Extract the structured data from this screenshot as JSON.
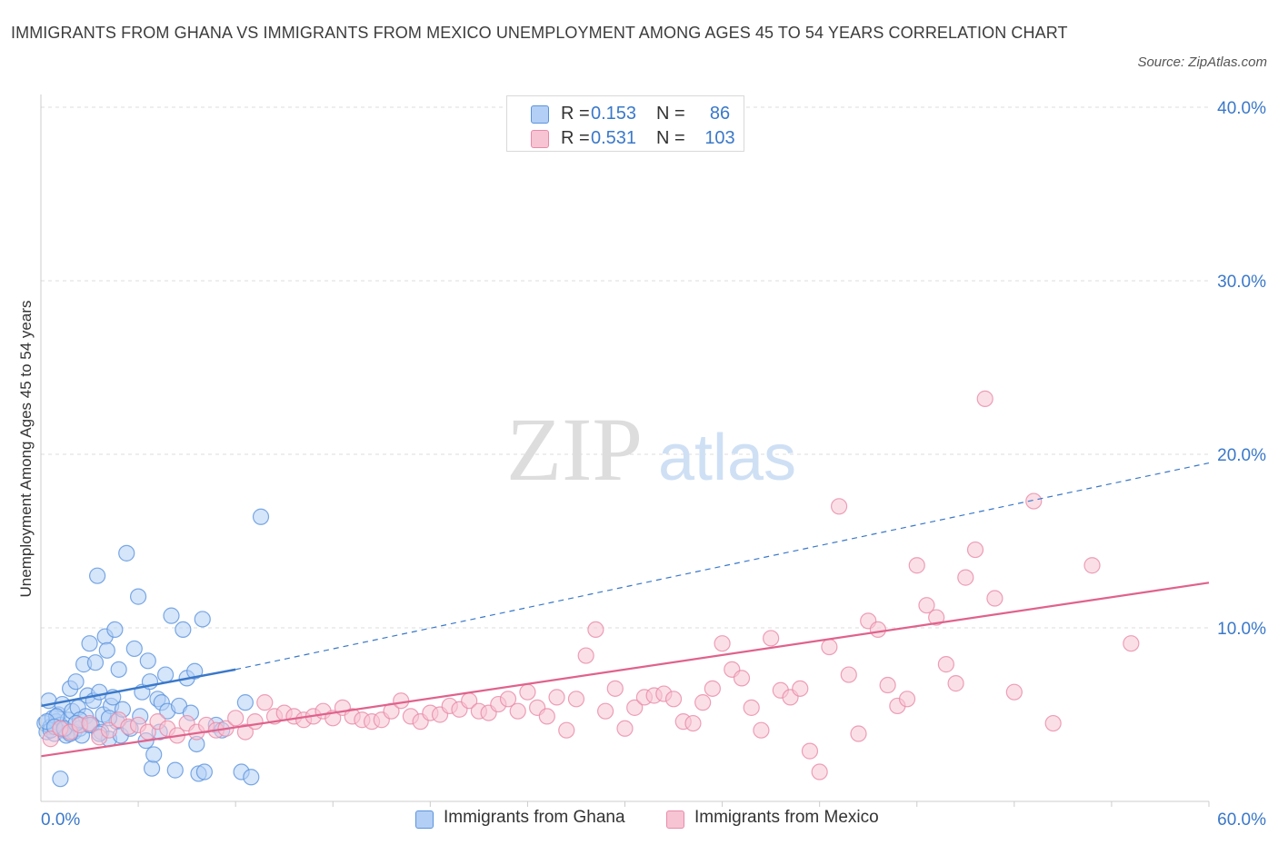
{
  "header": {
    "title": "IMMIGRANTS FROM GHANA VS IMMIGRANTS FROM MEXICO UNEMPLOYMENT AMONG AGES 45 TO 54 YEARS CORRELATION CHART",
    "source": "Source: ZipAtlas.com"
  },
  "watermark": {
    "zip": "ZIP",
    "atlas": "atlas"
  },
  "legend": {
    "r_label": "R =",
    "n_label": "N =",
    "ghana": {
      "r": "0.153",
      "n": "86"
    },
    "mexico": {
      "r": "0.531",
      "n": "103"
    }
  },
  "colors": {
    "ghana_fill": "#b3cff5",
    "ghana_stroke": "#5b93dd",
    "ghana_line": "#3a78c9",
    "mexico_fill": "#f7c4d4",
    "mexico_stroke": "#e88aa8",
    "mexico_line": "#e0628c",
    "axis_label": "#3a78c9"
  },
  "chart_data": {
    "type": "scatter",
    "title": "IMMIGRANTS FROM GHANA VS IMMIGRANTS FROM MEXICO UNEMPLOYMENT AMONG AGES 45 TO 54 YEARS CORRELATION CHART",
    "xlabel": "",
    "ylabel": "Unemployment Among Ages 45 to 54 years",
    "xlim": [
      0,
      60
    ],
    "ylim": [
      0,
      40
    ],
    "x_tick_labels": [
      "0.0%",
      "60.0%"
    ],
    "y_ticks": [
      10,
      20,
      30,
      40
    ],
    "y_tick_labels": [
      "10.0%",
      "20.0%",
      "30.0%",
      "40.0%"
    ],
    "grid": true,
    "legend_position": "top-center",
    "series": [
      {
        "name": "Immigrants from Ghana",
        "r": 0.153,
        "n": 86,
        "trend": {
          "x_start": 0,
          "y_start": 5.5,
          "x_end": 10,
          "y_end": 7.6,
          "extended_x_end": 60,
          "extended_y_end": 19.5
        },
        "points": [
          [
            0.2,
            4.5
          ],
          [
            0.3,
            4.0
          ],
          [
            0.4,
            5.8
          ],
          [
            0.5,
            4.3
          ],
          [
            0.6,
            4.8
          ],
          [
            0.7,
            3.9
          ],
          [
            0.8,
            4.6
          ],
          [
            0.9,
            5.0
          ],
          [
            1.0,
            4.4
          ],
          [
            1.1,
            5.6
          ],
          [
            1.2,
            4.1
          ],
          [
            1.3,
            3.8
          ],
          [
            1.4,
            4.7
          ],
          [
            1.5,
            6.5
          ],
          [
            1.6,
            5.2
          ],
          [
            1.7,
            4.0
          ],
          [
            1.8,
            6.9
          ],
          [
            1.9,
            5.4
          ],
          [
            2.0,
            4.2
          ],
          [
            2.1,
            3.8
          ],
          [
            2.2,
            7.9
          ],
          [
            2.3,
            4.9
          ],
          [
            2.4,
            6.1
          ],
          [
            2.5,
            9.1
          ],
          [
            2.6,
            4.4
          ],
          [
            2.7,
            5.8
          ],
          [
            2.8,
            8.0
          ],
          [
            2.9,
            13.0
          ],
          [
            3.0,
            6.3
          ],
          [
            3.1,
            4.0
          ],
          [
            3.2,
            5.0
          ],
          [
            3.3,
            9.5
          ],
          [
            3.4,
            8.7
          ],
          [
            3.5,
            3.6
          ],
          [
            3.6,
            5.5
          ],
          [
            3.7,
            6.0
          ],
          [
            3.8,
            9.9
          ],
          [
            3.9,
            4.6
          ],
          [
            4.0,
            7.6
          ],
          [
            4.1,
            3.8
          ],
          [
            4.2,
            5.3
          ],
          [
            4.4,
            14.3
          ],
          [
            4.6,
            4.2
          ],
          [
            4.8,
            8.8
          ],
          [
            5.0,
            11.8
          ],
          [
            5.1,
            4.9
          ],
          [
            5.2,
            6.3
          ],
          [
            5.4,
            3.5
          ],
          [
            5.5,
            8.1
          ],
          [
            5.6,
            6.9
          ],
          [
            5.7,
            1.9
          ],
          [
            5.8,
            2.7
          ],
          [
            6.0,
            5.9
          ],
          [
            6.1,
            4.0
          ],
          [
            6.2,
            5.7
          ],
          [
            6.4,
            7.3
          ],
          [
            6.5,
            5.2
          ],
          [
            6.7,
            10.7
          ],
          [
            6.9,
            1.8
          ],
          [
            7.1,
            5.5
          ],
          [
            7.3,
            9.9
          ],
          [
            7.5,
            7.1
          ],
          [
            7.7,
            5.1
          ],
          [
            7.9,
            7.5
          ],
          [
            8.0,
            3.3
          ],
          [
            8.1,
            1.6
          ],
          [
            8.3,
            10.5
          ],
          [
            8.4,
            1.7
          ],
          [
            9.0,
            4.4
          ],
          [
            9.3,
            4.1
          ],
          [
            10.3,
            1.7
          ],
          [
            10.5,
            5.7
          ],
          [
            10.8,
            1.4
          ],
          [
            11.3,
            16.4
          ],
          [
            1.0,
            1.3
          ],
          [
            0.5,
            4.1
          ],
          [
            0.8,
            4.9
          ],
          [
            1.5,
            3.9
          ],
          [
            2.0,
            4.7
          ],
          [
            2.5,
            4.4
          ],
          [
            3.0,
            3.9
          ],
          [
            3.5,
            4.8
          ],
          [
            0.3,
            4.6
          ],
          [
            0.7,
            4.3
          ],
          [
            1.2,
            4.2
          ],
          [
            1.8,
            4.5
          ]
        ]
      },
      {
        "name": "Immigrants from Mexico",
        "r": 0.531,
        "n": 103,
        "trend": {
          "x_start": 0,
          "y_start": 2.6,
          "x_end": 60,
          "y_end": 12.6
        },
        "points": [
          [
            0.5,
            3.6
          ],
          [
            1.0,
            4.2
          ],
          [
            1.5,
            4.0
          ],
          [
            2.0,
            4.4
          ],
          [
            2.5,
            4.5
          ],
          [
            3.0,
            3.7
          ],
          [
            3.5,
            4.1
          ],
          [
            4.0,
            4.7
          ],
          [
            4.5,
            4.3
          ],
          [
            5.0,
            4.4
          ],
          [
            5.5,
            4.0
          ],
          [
            6.0,
            4.6
          ],
          [
            6.5,
            4.2
          ],
          [
            7.0,
            3.8
          ],
          [
            7.5,
            4.5
          ],
          [
            8.0,
            4.0
          ],
          [
            8.5,
            4.4
          ],
          [
            9.0,
            4.1
          ],
          [
            9.5,
            4.2
          ],
          [
            10.0,
            4.8
          ],
          [
            10.5,
            4.0
          ],
          [
            11.0,
            4.6
          ],
          [
            11.5,
            5.7
          ],
          [
            12.0,
            4.9
          ],
          [
            12.5,
            5.1
          ],
          [
            13.0,
            4.9
          ],
          [
            13.5,
            4.7
          ],
          [
            14.0,
            4.9
          ],
          [
            14.5,
            5.2
          ],
          [
            15.0,
            4.8
          ],
          [
            15.5,
            5.4
          ],
          [
            16.0,
            4.9
          ],
          [
            16.5,
            4.7
          ],
          [
            17.0,
            4.6
          ],
          [
            17.5,
            4.7
          ],
          [
            18.0,
            5.2
          ],
          [
            18.5,
            5.8
          ],
          [
            19.0,
            4.9
          ],
          [
            19.5,
            4.6
          ],
          [
            20.0,
            5.1
          ],
          [
            20.5,
            5.0
          ],
          [
            21.0,
            5.5
          ],
          [
            21.5,
            5.3
          ],
          [
            22.0,
            5.8
          ],
          [
            22.5,
            5.2
          ],
          [
            23.0,
            5.1
          ],
          [
            23.5,
            5.6
          ],
          [
            24.0,
            5.9
          ],
          [
            24.5,
            5.2
          ],
          [
            25.0,
            6.3
          ],
          [
            25.5,
            5.4
          ],
          [
            26.0,
            4.9
          ],
          [
            26.5,
            6.0
          ],
          [
            27.0,
            4.1
          ],
          [
            27.5,
            5.9
          ],
          [
            28.0,
            8.4
          ],
          [
            28.5,
            9.9
          ],
          [
            29.0,
            5.2
          ],
          [
            29.5,
            6.5
          ],
          [
            30.0,
            4.2
          ],
          [
            30.5,
            5.4
          ],
          [
            31.0,
            6.0
          ],
          [
            31.5,
            6.1
          ],
          [
            32.0,
            6.2
          ],
          [
            32.5,
            5.9
          ],
          [
            33.0,
            4.6
          ],
          [
            33.5,
            4.5
          ],
          [
            34.0,
            5.7
          ],
          [
            34.5,
            6.5
          ],
          [
            35.0,
            9.1
          ],
          [
            35.5,
            7.6
          ],
          [
            36.0,
            7.1
          ],
          [
            36.5,
            5.4
          ],
          [
            37.0,
            4.1
          ],
          [
            37.5,
            9.4
          ],
          [
            38.0,
            6.4
          ],
          [
            38.5,
            6.0
          ],
          [
            39.0,
            6.5
          ],
          [
            39.5,
            2.9
          ],
          [
            40.0,
            1.7
          ],
          [
            40.5,
            8.9
          ],
          [
            41.0,
            17.0
          ],
          [
            41.5,
            7.3
          ],
          [
            42.0,
            3.9
          ],
          [
            42.5,
            10.4
          ],
          [
            43.0,
            9.9
          ],
          [
            43.5,
            6.7
          ],
          [
            44.0,
            5.5
          ],
          [
            44.5,
            5.9
          ],
          [
            45.0,
            13.6
          ],
          [
            45.5,
            11.3
          ],
          [
            46.0,
            10.6
          ],
          [
            46.5,
            7.9
          ],
          [
            47.0,
            6.8
          ],
          [
            47.5,
            12.9
          ],
          [
            48.0,
            14.5
          ],
          [
            48.5,
            23.2
          ],
          [
            49.0,
            11.7
          ],
          [
            50.0,
            6.3
          ],
          [
            51.0,
            17.3
          ],
          [
            52.0,
            4.5
          ],
          [
            54.0,
            13.6
          ],
          [
            56.0,
            9.1
          ]
        ]
      }
    ]
  },
  "bottom_legend": {
    "ghana_label": "Immigrants from Ghana",
    "mexico_label": "Immigrants from Mexico"
  }
}
